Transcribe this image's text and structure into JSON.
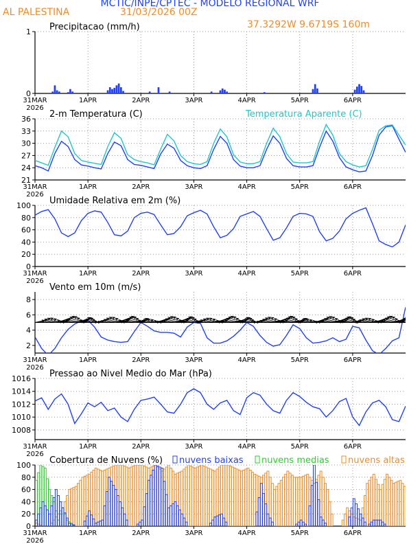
{
  "header": {
    "title": "MCTIC/INPE/CPTEC - MODELO REGIONAL WRF",
    "location": "AL PALESTINA",
    "run": "31/03/2026 00Z",
    "coords": "37.3292W 9.6719S 160m"
  },
  "colors": {
    "blue": "#1f3fff",
    "orange": "#f58a1f",
    "cyan": "#1fc8c8",
    "green": "#22d422",
    "black": "#000000",
    "grid": "#9a9a9a"
  },
  "time_axis": {
    "hours": 168,
    "ticks": [
      {
        "hour": 0,
        "label": "31MAR",
        "sublabel": "2026"
      },
      {
        "hour": 24,
        "label": "1APR"
      },
      {
        "hour": 48,
        "label": "2APR"
      },
      {
        "hour": 72,
        "label": "3APR"
      },
      {
        "hour": 96,
        "label": "4APR"
      },
      {
        "hour": 120,
        "label": "5APR"
      },
      {
        "hour": 144,
        "label": "6APR"
      }
    ]
  },
  "chart_data": [
    {
      "id": "precip",
      "type": "bar",
      "title": "Precipitacao (mm/h)",
      "ylim": [
        0,
        1
      ],
      "yticks": [
        0,
        1
      ],
      "series": [
        {
          "name": "Precipitacao",
          "color": "#1f3fff",
          "hours": [
            8,
            9,
            10,
            11,
            15,
            16,
            17,
            33,
            34,
            35,
            36,
            37,
            38,
            39,
            40,
            52,
            56,
            61,
            80,
            84,
            85,
            86,
            87,
            104,
            126,
            127,
            128,
            145,
            146,
            147,
            148,
            149
          ],
          "values": [
            0.03,
            0.13,
            0.05,
            0.03,
            0.02,
            0.07,
            0.03,
            0.05,
            0.1,
            0.07,
            0.09,
            0.13,
            0.16,
            0.1,
            0.04,
            0.03,
            0.1,
            0.03,
            0.03,
            0.05,
            0.08,
            0.06,
            0.03,
            0.02,
            0.07,
            0.15,
            0.08,
            0.06,
            0.11,
            0.15,
            0.12,
            0.05
          ]
        }
      ]
    },
    {
      "id": "temp",
      "type": "line",
      "title": "2-m Temperatura (C)",
      "legend": "Temperatura Aparente (C)",
      "ylim": [
        21,
        36
      ],
      "yticks": [
        21,
        24,
        27,
        30,
        33,
        36
      ],
      "series": [
        {
          "name": "2-m Temperatura",
          "color": "#1f3fff",
          "x": [
            0,
            3,
            6,
            9,
            12,
            15,
            18,
            21,
            24,
            27,
            30,
            33,
            36,
            39,
            42,
            45,
            48,
            51,
            54,
            57,
            60,
            63,
            66,
            69,
            72,
            75,
            78,
            81,
            84,
            87,
            90,
            93,
            96,
            99,
            102,
            105,
            108,
            111,
            114,
            117,
            120,
            123,
            126,
            129,
            132,
            135,
            138,
            141,
            144,
            147,
            150,
            153,
            156,
            159,
            162,
            165,
            168
          ],
          "y": [
            24.5,
            24.0,
            23.2,
            27.5,
            30.5,
            29.2,
            26.0,
            24.7,
            24.4,
            24.0,
            23.7,
            27.5,
            30.3,
            29.4,
            26.0,
            24.8,
            24.6,
            24.2,
            23.8,
            27.4,
            29.8,
            28.8,
            25.8,
            24.5,
            24.0,
            23.8,
            24.5,
            28.5,
            31.7,
            30.0,
            26.0,
            24.4,
            24.0,
            24.0,
            24.5,
            28.5,
            31.8,
            30.0,
            26.3,
            24.5,
            24.2,
            24.2,
            24.5,
            29.0,
            33.0,
            30.5,
            26.5,
            24.2,
            23.5,
            23.0,
            23.2,
            27.0,
            32.0,
            34.0,
            34.3,
            31.0,
            27.8
          ]
        },
        {
          "name": "Temperatura Aparente",
          "color": "#1fc8c8",
          "x": [
            0,
            3,
            6,
            9,
            12,
            15,
            18,
            21,
            24,
            27,
            30,
            33,
            36,
            39,
            42,
            45,
            48,
            51,
            54,
            57,
            60,
            63,
            66,
            69,
            72,
            75,
            78,
            81,
            84,
            87,
            90,
            93,
            96,
            99,
            102,
            105,
            108,
            111,
            114,
            117,
            120,
            123,
            126,
            129,
            132,
            135,
            138,
            141,
            144,
            147,
            150,
            153,
            156,
            159,
            162,
            165,
            168
          ],
          "y": [
            25.8,
            25.2,
            24.6,
            29.0,
            33.0,
            31.6,
            27.5,
            25.8,
            25.4,
            25.1,
            24.8,
            29.2,
            32.6,
            31.2,
            27.2,
            26.0,
            25.5,
            25.2,
            24.7,
            28.6,
            32.2,
            30.6,
            27.0,
            25.5,
            25.0,
            24.8,
            25.5,
            30.0,
            33.5,
            31.6,
            27.2,
            25.4,
            25.0,
            25.0,
            25.5,
            30.0,
            33.7,
            31.6,
            27.5,
            25.4,
            25.2,
            25.2,
            25.5,
            30.5,
            34.6,
            32.0,
            27.5,
            25.5,
            24.7,
            24.2,
            24.5,
            28.5,
            33.2,
            34.3,
            34.5,
            32.0,
            29.6
          ]
        }
      ]
    },
    {
      "id": "rh",
      "type": "line",
      "title": "Umidade Relativa em 2m (%)",
      "ylim": [
        0,
        100
      ],
      "yticks": [
        0,
        20,
        40,
        60,
        80,
        100
      ],
      "series": [
        {
          "name": "Umidade Relativa",
          "color": "#1f3fff",
          "x": [
            0,
            3,
            6,
            9,
            12,
            15,
            18,
            21,
            24,
            27,
            30,
            33,
            36,
            39,
            42,
            45,
            48,
            51,
            54,
            57,
            60,
            63,
            66,
            69,
            72,
            75,
            78,
            81,
            84,
            87,
            90,
            93,
            96,
            99,
            102,
            105,
            108,
            111,
            114,
            117,
            120,
            123,
            126,
            129,
            132,
            135,
            138,
            141,
            144,
            147,
            150,
            153,
            156,
            159,
            162,
            165,
            168
          ],
          "y": [
            84,
            90,
            93,
            78,
            55,
            49,
            55,
            75,
            87,
            91,
            89,
            72,
            52,
            50,
            58,
            80,
            87,
            89,
            85,
            68,
            52,
            54,
            65,
            83,
            88,
            92,
            86,
            65,
            47,
            51,
            62,
            82,
            86,
            90,
            82,
            62,
            43,
            47,
            63,
            82,
            87,
            86,
            82,
            57,
            42,
            46,
            58,
            78,
            87,
            92,
            96,
            70,
            42,
            36,
            32,
            40,
            68
          ]
        }
      ]
    },
    {
      "id": "wind",
      "type": "line",
      "title": "Vento em 10m (m/s)",
      "ylim": [
        1,
        9
      ],
      "yticks": [
        2,
        4,
        6,
        8
      ],
      "arrows": "wind direction arrows along 5 m/s baseline",
      "series": [
        {
          "name": "Vento",
          "color": "#1f3fff",
          "x": [
            0,
            3,
            6,
            9,
            12,
            15,
            18,
            21,
            24,
            27,
            30,
            33,
            36,
            39,
            42,
            45,
            48,
            51,
            54,
            57,
            60,
            63,
            66,
            69,
            72,
            75,
            78,
            81,
            84,
            87,
            90,
            93,
            96,
            99,
            102,
            105,
            108,
            111,
            114,
            117,
            120,
            123,
            126,
            129,
            132,
            135,
            138,
            141,
            144,
            147,
            150,
            153,
            156,
            159,
            162,
            165,
            168
          ],
          "y": [
            3.1,
            1.6,
            0.7,
            1.6,
            3.0,
            4.1,
            4.8,
            5.2,
            5.3,
            4.4,
            3.1,
            2.7,
            2.5,
            2.4,
            2.5,
            3.8,
            5.0,
            4.5,
            3.9,
            3.7,
            3.7,
            3.6,
            3.1,
            4.4,
            5.0,
            4.9,
            3.0,
            2.3,
            2.3,
            2.6,
            3.2,
            4.0,
            5.0,
            4.5,
            3.3,
            2.4,
            1.9,
            2.1,
            3.3,
            4.7,
            4.2,
            3.0,
            2.3,
            2.4,
            2.6,
            3.0,
            2.5,
            2.8,
            4.5,
            4.3,
            2.7,
            1.3,
            0.8,
            1.6,
            2.6,
            3.0,
            7.0
          ]
        }
      ]
    },
    {
      "id": "pressure",
      "type": "line",
      "title": "Pressao ao Nivel Medio do Mar (hPa)",
      "ylim": [
        1006.5,
        1016
      ],
      "yticks": [
        1008,
        1010,
        1012,
        1014,
        1016
      ],
      "series": [
        {
          "name": "Pressao",
          "color": "#1f3fff",
          "x": [
            0,
            3,
            6,
            9,
            12,
            15,
            18,
            21,
            24,
            27,
            30,
            33,
            36,
            39,
            42,
            45,
            48,
            51,
            54,
            57,
            60,
            63,
            66,
            69,
            72,
            75,
            78,
            81,
            84,
            87,
            90,
            93,
            96,
            99,
            102,
            105,
            108,
            111,
            114,
            117,
            120,
            123,
            126,
            129,
            132,
            135,
            138,
            141,
            144,
            147,
            150,
            153,
            156,
            159,
            162,
            165,
            168
          ],
          "y": [
            1012.5,
            1013.0,
            1011.2,
            1012.8,
            1013.6,
            1012.0,
            1009.0,
            1010.5,
            1012.2,
            1011.6,
            1012.3,
            1011.0,
            1011.4,
            1010.0,
            1009.3,
            1011.2,
            1012.6,
            1012.8,
            1013.1,
            1012.0,
            1010.8,
            1010.6,
            1012.0,
            1013.8,
            1014.4,
            1013.8,
            1012.0,
            1011.2,
            1012.2,
            1012.6,
            1011.0,
            1010.4,
            1013.0,
            1013.8,
            1013.4,
            1012.0,
            1011.0,
            1010.6,
            1012.6,
            1013.8,
            1013.2,
            1012.3,
            1011.6,
            1011.3,
            1010.0,
            1011.0,
            1012.4,
            1012.9,
            1010.0,
            1008.7,
            1010.8,
            1012.2,
            1012.6,
            1011.6,
            1009.6,
            1009.3,
            1011.7
          ]
        }
      ]
    },
    {
      "id": "clouds",
      "type": "bar",
      "title": "Cobertura de Nuvens (%)",
      "ylim": [
        0,
        100
      ],
      "yticks": [
        0,
        20,
        40,
        60,
        80,
        100
      ],
      "legend": {
        "low": "nuvens baixas",
        "mid": "nuvens medias",
        "high": "nuvens altas"
      },
      "series": [
        {
          "name": "nuvens altas",
          "color": "#f58a1f",
          "x": [
            0,
            3,
            6,
            9,
            12,
            15,
            18,
            21,
            24,
            27,
            30,
            33,
            36,
            39,
            42,
            45,
            48,
            51,
            54,
            57,
            60,
            63,
            66,
            69,
            72,
            75,
            78,
            81,
            84,
            87,
            90,
            93,
            96,
            99,
            102,
            105,
            108,
            111,
            114,
            117,
            120,
            123,
            126,
            129,
            132,
            135,
            138,
            141,
            144,
            147,
            150,
            153,
            156,
            159,
            162,
            165,
            168
          ],
          "y": [
            5,
            0,
            0,
            15,
            30,
            60,
            65,
            80,
            85,
            95,
            90,
            95,
            100,
            100,
            95,
            100,
            100,
            95,
            100,
            90,
            100,
            85,
            90,
            100,
            95,
            100,
            95,
            90,
            100,
            100,
            95,
            90,
            95,
            85,
            80,
            90,
            60,
            75,
            90,
            80,
            80,
            85,
            70,
            90,
            60,
            0,
            0,
            30,
            15,
            10,
            70,
            85,
            60,
            85,
            70,
            75,
            60
          ]
        },
        {
          "name": "nuvens medias",
          "color": "#22d422",
          "x": [
            0,
            2,
            4,
            6,
            8,
            10,
            12,
            14,
            16,
            18,
            20,
            24,
            30,
            36,
            42,
            48,
            60,
            72,
            84,
            96,
            108,
            120,
            132,
            144,
            156,
            168
          ],
          "y": [
            75,
            100,
            95,
            60,
            40,
            10,
            30,
            10,
            5,
            0,
            0,
            0,
            0,
            0,
            0,
            0,
            0,
            0,
            0,
            0,
            0,
            0,
            0,
            0,
            0,
            0
          ]
        },
        {
          "name": "nuvens baixas",
          "color": "#1f3fff",
          "x": [
            0,
            3,
            6,
            9,
            12,
            15,
            18,
            21,
            24,
            27,
            30,
            33,
            36,
            39,
            42,
            45,
            48,
            51,
            54,
            57,
            60,
            63,
            66,
            69,
            72,
            75,
            78,
            81,
            84,
            87,
            90,
            93,
            96,
            99,
            102,
            105,
            108,
            111,
            114,
            117,
            120,
            123,
            126,
            129,
            132,
            135,
            138,
            141,
            144,
            147,
            150,
            153,
            156,
            159,
            162,
            165,
            168
          ],
          "y": [
            10,
            40,
            20,
            60,
            30,
            5,
            0,
            0,
            25,
            5,
            10,
            80,
            60,
            30,
            0,
            0,
            10,
            75,
            100,
            95,
            30,
            40,
            20,
            0,
            0,
            0,
            0,
            15,
            20,
            0,
            0,
            0,
            0,
            0,
            70,
            20,
            0,
            0,
            0,
            0,
            10,
            0,
            100,
            15,
            0,
            0,
            0,
            0,
            45,
            20,
            0,
            10,
            10,
            0,
            0,
            0,
            0
          ]
        }
      ]
    }
  ]
}
